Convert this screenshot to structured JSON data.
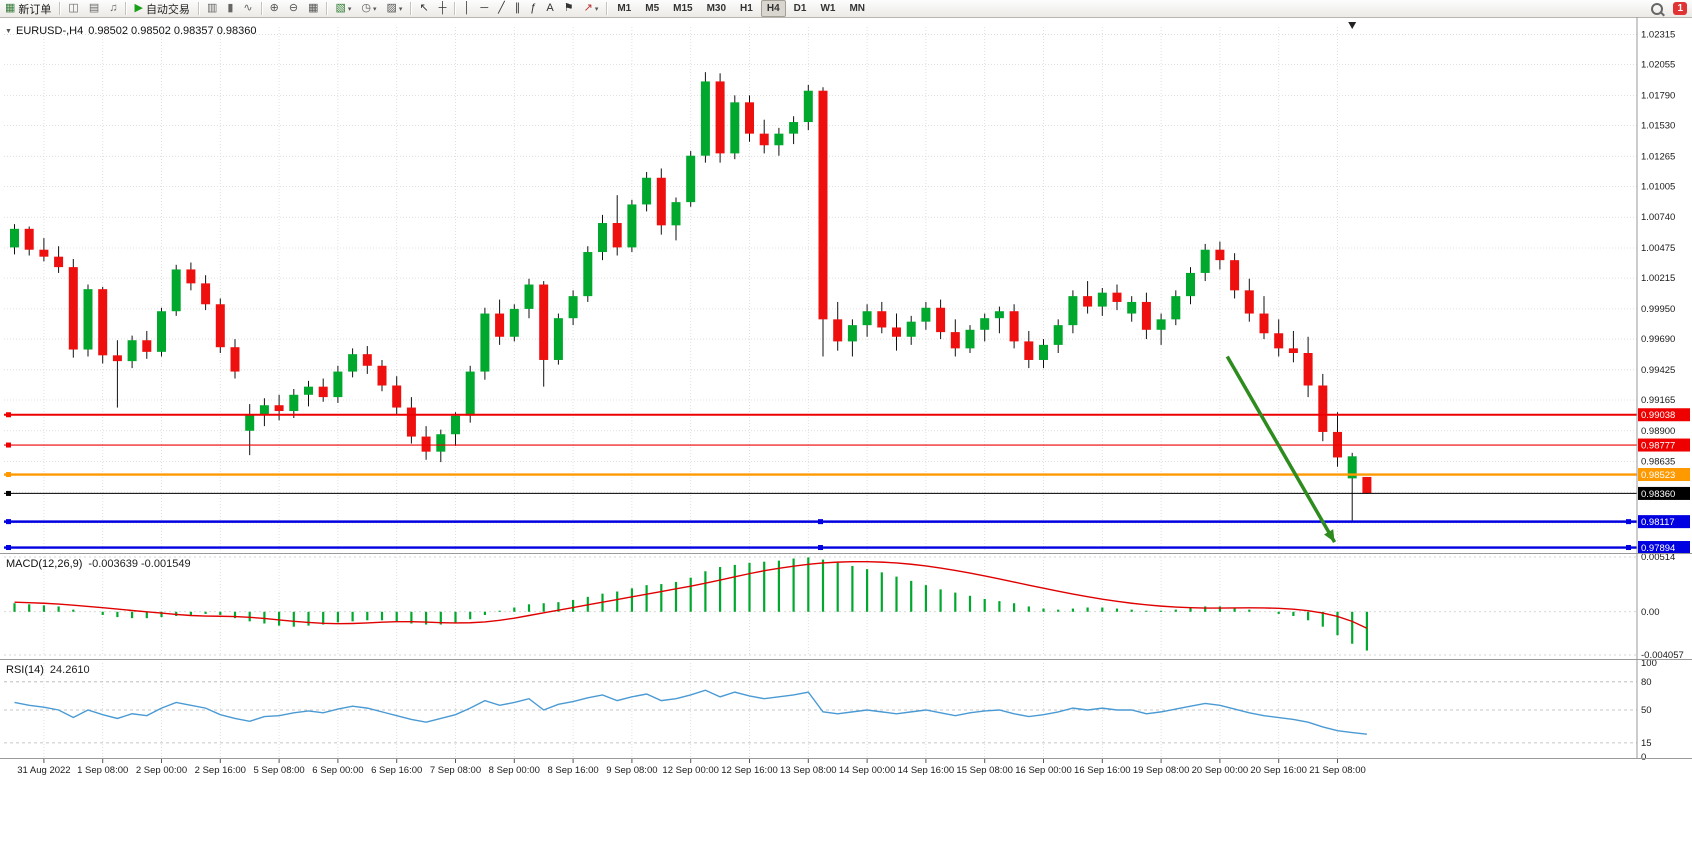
{
  "toolbar": {
    "groups": [
      [
        {
          "name": "new-order-button",
          "icon": "new-order",
          "label": "新订单"
        }
      ],
      [
        {
          "name": "charts-window-icon",
          "icon": "window"
        },
        {
          "name": "profiles-icon",
          "icon": "folder"
        },
        {
          "name": "alerts-icon",
          "icon": "sound"
        }
      ],
      [
        {
          "name": "autotrading-button",
          "icon": "play",
          "label": "自动交易"
        }
      ],
      [
        {
          "name": "bar-chart-button",
          "icon": "bars"
        },
        {
          "name": "candlestick-chart-button",
          "icon": "candles"
        },
        {
          "name": "line-chart-button",
          "icon": "linechart"
        }
      ],
      [
        {
          "name": "zoom-in-button",
          "icon": "zoom-in"
        },
        {
          "name": "zoom-out-button",
          "icon": "zoom-out"
        },
        {
          "name": "tile-windows-button",
          "icon": "tile"
        }
      ],
      [
        {
          "name": "new-chart-button",
          "icon": "chart-plus",
          "dropdown": true
        },
        {
          "name": "period-button",
          "icon": "clock",
          "dropdown": true
        },
        {
          "name": "templates-button",
          "icon": "template",
          "dropdown": true
        }
      ],
      [
        {
          "name": "cursor-button",
          "icon": "cursor"
        },
        {
          "name": "crosshair-button",
          "icon": "crosshair"
        }
      ],
      [
        {
          "name": "vertical-line-button",
          "icon": "vline"
        },
        {
          "name": "horizontal-line-button",
          "icon": "hline"
        },
        {
          "name": "trendline-button",
          "icon": "trend"
        },
        {
          "name": "equidistant-channel-button",
          "icon": "channel"
        },
        {
          "name": "fibonacci-button",
          "icon": "fibo"
        },
        {
          "name": "text-button",
          "icon": "text"
        },
        {
          "name": "label-button",
          "icon": "label"
        },
        {
          "name": "arrows-button",
          "icon": "arrowtool",
          "dropdown": true
        }
      ]
    ],
    "timeframes": [
      "M1",
      "M5",
      "M15",
      "M30",
      "H1",
      "H4",
      "D1",
      "W1",
      "MN"
    ],
    "active_timeframe": "H4",
    "notification_count": "1"
  },
  "symbol_header": {
    "collapse_icon": "▼",
    "symbol": "EURUSD-,H4",
    "ohlc_text": "0.98502 0.98502 0.98357 0.98360"
  },
  "indicators": {
    "macd": {
      "label": "MACD(12,26,9)",
      "values": "-0.003639 -0.001549"
    },
    "rsi": {
      "label": "RSI(14)",
      "value": "24.2610"
    }
  },
  "colors": {
    "bull": "#00a82d",
    "bear": "#ee0f0f",
    "wick": "#111111",
    "grid": "#d8d8d8",
    "separator": "#9a9a9a",
    "axis_text": "#1a1a1a",
    "macd_hist": "#00a82d",
    "macd_signal": "#e00000",
    "rsi_line": "#4a9ad4",
    "arrow": "#2e8b1e"
  },
  "chart_data": [
    {
      "type": "candlestick",
      "title": "EURUSD-,H4",
      "ylim": [
        0.97864,
        1.02379
      ],
      "y_ticks": [
        "1.02315",
        "1.02055",
        "1.01790",
        "1.01530",
        "1.01265",
        "1.01005",
        "1.00740",
        "1.00475",
        "1.00215",
        "0.99950",
        "0.99690",
        "0.99425",
        "0.99165",
        "0.98900",
        "0.98635"
      ],
      "grid_extra": [
        0.9837,
        0.98105
      ],
      "x_labels": [
        "31 Aug 2022",
        "1 Sep 08:00",
        "2 Sep 00:00",
        "2 Sep 16:00",
        "5 Sep 08:00",
        "6 Sep 00:00",
        "6 Sep 16:00",
        "7 Sep 08:00",
        "8 Sep 00:00",
        "8 Sep 16:00",
        "9 Sep 08:00",
        "12 Sep 00:00",
        "12 Sep 16:00",
        "13 Sep 08:00",
        "14 Sep 00:00",
        "14 Sep 16:00",
        "15 Sep 08:00",
        "16 Sep 00:00",
        "16 Sep 16:00",
        "19 Sep 08:00",
        "20 Sep 00:00",
        "20 Sep 16:00",
        "21 Sep 08:00"
      ],
      "x_label_first_index": 2,
      "x_label_step": 4,
      "hlines": [
        {
          "price": 0.99038,
          "label": "0.99038",
          "color": "#ee0000",
          "width": 2,
          "selected": false
        },
        {
          "price": 0.98777,
          "label": "0.98777",
          "color": "#ee0000",
          "width": 1.2,
          "selected": false
        },
        {
          "price": 0.98523,
          "label": "0.98523",
          "color": "#ff9900",
          "width": 2.4,
          "selected": false
        },
        {
          "price": 0.9836,
          "label": "0.98360",
          "color": "#000000",
          "width": 1,
          "selected": false
        },
        {
          "price": 0.98117,
          "label": "0.98117",
          "color": "#0000e0",
          "width": 2.4,
          "selected": true
        },
        {
          "price": 0.97894,
          "label": "0.97894",
          "color": "#0000e0",
          "width": 2.4,
          "selected": true
        }
      ],
      "arrow": {
        "from_index": 82.5,
        "from_price": 0.9954,
        "to_index": 89.8,
        "to_price": 0.9794
      },
      "last_bar_marker_index": 91,
      "candles": [
        [
          1.0048,
          1.0068,
          1.0042,
          1.0064
        ],
        [
          1.0064,
          1.0066,
          1.0041,
          1.0046
        ],
        [
          1.0046,
          1.0056,
          1.0036,
          1.004
        ],
        [
          1.004,
          1.0049,
          1.0026,
          1.0031
        ],
        [
          1.0031,
          1.0038,
          0.9953,
          0.996
        ],
        [
          0.996,
          1.0016,
          0.9954,
          1.0012
        ],
        [
          1.0012,
          1.0014,
          0.9948,
          0.9955
        ],
        [
          0.9955,
          0.9968,
          0.991,
          0.995
        ],
        [
          0.995,
          0.9972,
          0.9944,
          0.9968
        ],
        [
          0.9968,
          0.9976,
          0.9952,
          0.9958
        ],
        [
          0.9958,
          0.9996,
          0.9954,
          0.9993
        ],
        [
          0.9993,
          1.0033,
          0.9989,
          1.0029
        ],
        [
          1.0029,
          1.0035,
          1.0011,
          1.0017
        ],
        [
          1.0017,
          1.0024,
          0.9994,
          0.9999
        ],
        [
          0.9999,
          1.0004,
          0.9957,
          0.9962
        ],
        [
          0.9962,
          0.9969,
          0.9935,
          0.9941
        ],
        [
          0.989,
          0.9913,
          0.9869,
          0.9904
        ],
        [
          0.9904,
          0.9918,
          0.9894,
          0.9912
        ],
        [
          0.9912,
          0.9921,
          0.9899,
          0.9907
        ],
        [
          0.9907,
          0.9926,
          0.9901,
          0.9921
        ],
        [
          0.9921,
          0.9933,
          0.9911,
          0.9928
        ],
        [
          0.9928,
          0.9935,
          0.9915,
          0.9919
        ],
        [
          0.9919,
          0.9946,
          0.9914,
          0.9941
        ],
        [
          0.9941,
          0.9961,
          0.9936,
          0.9956
        ],
        [
          0.9956,
          0.9963,
          0.9939,
          0.9946
        ],
        [
          0.9946,
          0.9951,
          0.9924,
          0.9929
        ],
        [
          0.9929,
          0.9937,
          0.9904,
          0.991
        ],
        [
          0.991,
          0.9919,
          0.9879,
          0.9885
        ],
        [
          0.9885,
          0.9894,
          0.9865,
          0.9872
        ],
        [
          0.9872,
          0.9891,
          0.9863,
          0.9887
        ],
        [
          0.9887,
          0.9906,
          0.9877,
          0.9903
        ],
        [
          0.9903,
          0.9946,
          0.9897,
          0.9941
        ],
        [
          0.9941,
          0.9996,
          0.9934,
          0.9991
        ],
        [
          0.9991,
          1.0003,
          0.9964,
          0.9971
        ],
        [
          0.9971,
          0.9999,
          0.9967,
          0.9995
        ],
        [
          0.9995,
          1.0021,
          0.9987,
          1.0016
        ],
        [
          1.0016,
          1.0019,
          0.9928,
          0.9951
        ],
        [
          0.9951,
          0.9991,
          0.9947,
          0.9987
        ],
        [
          0.9987,
          1.0011,
          0.9981,
          1.0006
        ],
        [
          1.0006,
          1.0049,
          1.0001,
          1.0044
        ],
        [
          1.0044,
          1.0076,
          1.0037,
          1.0069
        ],
        [
          1.0069,
          1.0093,
          1.0041,
          1.0048
        ],
        [
          1.0048,
          1.0089,
          1.0044,
          1.0085
        ],
        [
          1.0085,
          1.0113,
          1.0079,
          1.0108
        ],
        [
          1.0108,
          1.0116,
          1.0059,
          1.0067
        ],
        [
          1.0067,
          1.0091,
          1.0054,
          1.0087
        ],
        [
          1.0087,
          1.0131,
          1.0083,
          1.0127
        ],
        [
          1.0127,
          1.0199,
          1.0121,
          1.0191
        ],
        [
          1.0191,
          1.0198,
          1.0121,
          1.0129
        ],
        [
          1.0129,
          1.0179,
          1.0124,
          1.0173
        ],
        [
          1.0173,
          1.0179,
          1.0139,
          1.0146
        ],
        [
          1.0146,
          1.0158,
          1.0129,
          1.0136
        ],
        [
          1.0136,
          1.0151,
          1.0127,
          1.0146
        ],
        [
          1.0146,
          1.0161,
          1.0137,
          1.0156
        ],
        [
          1.0156,
          1.0188,
          1.0149,
          1.0183
        ],
        [
          1.0183,
          1.0186,
          0.9954,
          0.9986
        ],
        [
          0.9986,
          1.0001,
          0.9959,
          0.9967
        ],
        [
          0.9967,
          0.9986,
          0.9954,
          0.9981
        ],
        [
          0.9981,
          0.9999,
          0.9971,
          0.9993
        ],
        [
          0.9993,
          1.0001,
          0.9974,
          0.9979
        ],
        [
          0.9979,
          0.9991,
          0.9959,
          0.9971
        ],
        [
          0.9971,
          0.9989,
          0.9964,
          0.9984
        ],
        [
          0.9984,
          1.0001,
          0.9977,
          0.9996
        ],
        [
          0.9996,
          1.0003,
          0.9969,
          0.9975
        ],
        [
          0.9975,
          0.9986,
          0.9954,
          0.9961
        ],
        [
          0.9961,
          0.9981,
          0.9957,
          0.9977
        ],
        [
          0.9977,
          0.9991,
          0.9967,
          0.9987
        ],
        [
          0.9987,
          0.9997,
          0.9974,
          0.9993
        ],
        [
          0.9993,
          0.9999,
          0.9961,
          0.9967
        ],
        [
          0.9967,
          0.9976,
          0.9944,
          0.9951
        ],
        [
          0.9951,
          0.9969,
          0.9944,
          0.9964
        ],
        [
          0.9964,
          0.9986,
          0.9957,
          0.9981
        ],
        [
          0.9981,
          1.0011,
          0.9974,
          1.0006
        ],
        [
          1.0006,
          1.0019,
          0.9991,
          0.9997
        ],
        [
          0.9997,
          1.0013,
          0.9989,
          1.0009
        ],
        [
          1.0009,
          1.0016,
          0.9994,
          1.0001
        ],
        [
          0.9991,
          1.0006,
          0.9984,
          1.0001
        ],
        [
          1.0001,
          1.0009,
          0.9969,
          0.9977
        ],
        [
          0.9977,
          0.9991,
          0.9964,
          0.9986
        ],
        [
          0.9986,
          1.0011,
          0.9981,
          1.0006
        ],
        [
          1.0006,
          1.0031,
          0.9999,
          1.0026
        ],
        [
          1.0026,
          1.0051,
          1.0019,
          1.0046
        ],
        [
          1.0046,
          1.0053,
          1.0029,
          1.0037
        ],
        [
          1.0037,
          1.0043,
          1.0004,
          1.0011
        ],
        [
          1.0011,
          1.0021,
          0.9984,
          0.9991
        ],
        [
          0.9991,
          1.0006,
          0.9969,
          0.9974
        ],
        [
          0.9974,
          0.9986,
          0.9954,
          0.9961
        ],
        [
          0.9961,
          0.9976,
          0.9949,
          0.9957
        ],
        [
          0.9957,
          0.9971,
          0.9919,
          0.9929
        ],
        [
          0.9929,
          0.9939,
          0.9881,
          0.9889
        ],
        [
          0.9889,
          0.9906,
          0.9859,
          0.9867
        ],
        [
          0.9849,
          0.9871,
          0.9812,
          0.9868
        ],
        [
          0.98502,
          0.98502,
          0.98357,
          0.9836
        ]
      ]
    },
    {
      "type": "bar",
      "name": "MACD",
      "params": "(12,26,9)",
      "values_label": "-0.003639 -0.001549",
      "ylim": [
        -0.004057,
        0.00514
      ],
      "y_ticks": [
        "0.00514",
        "0.00",
        "-0.004057"
      ],
      "histogram": [
        0.0008,
        0.0007,
        0.0006,
        0.0005,
        0.0002,
        0.0,
        -0.0003,
        -0.0005,
        -0.0006,
        -0.0006,
        -0.0005,
        -0.0004,
        -0.0003,
        -0.0002,
        -0.0003,
        -0.0006,
        -0.0009,
        -0.0011,
        -0.0013,
        -0.0014,
        -0.0013,
        -0.0012,
        -0.001,
        -0.0009,
        -0.0008,
        -0.0008,
        -0.0009,
        -0.0011,
        -0.0012,
        -0.0012,
        -0.001,
        -0.0007,
        -0.0003,
        0.0001,
        0.0004,
        0.0007,
        0.0008,
        0.0009,
        0.0011,
        0.0014,
        0.0017,
        0.0019,
        0.0022,
        0.0025,
        0.0026,
        0.0028,
        0.0032,
        0.0038,
        0.0042,
        0.0044,
        0.0046,
        0.0047,
        0.0048,
        0.005,
        0.0051,
        0.0049,
        0.0046,
        0.0043,
        0.004,
        0.0037,
        0.0033,
        0.0029,
        0.0025,
        0.0021,
        0.0018,
        0.0015,
        0.0012,
        0.001,
        0.0008,
        0.0005,
        0.0003,
        0.0002,
        0.0003,
        0.0004,
        0.0004,
        0.0003,
        0.0002,
        0.0001,
        0.0001,
        0.0002,
        0.0004,
        0.0005,
        0.0005,
        0.0004,
        0.0002,
        0.0,
        -0.0002,
        -0.0004,
        -0.0008,
        -0.0014,
        -0.0022,
        -0.003,
        -0.003639
      ],
      "signal": [
        0.0009,
        0.00085,
        0.0008,
        0.00072,
        0.00062,
        0.0005,
        0.00038,
        0.00025,
        0.00012,
        0.0,
        -0.00012,
        -0.00025,
        -0.00035,
        -0.0004,
        -0.00042,
        -0.00045,
        -0.00052,
        -0.00063,
        -0.00077,
        -0.0009,
        -0.001,
        -0.00108,
        -0.00112,
        -0.0011,
        -0.00105,
        -0.00098,
        -0.00093,
        -0.00093,
        -0.00097,
        -0.00102,
        -0.00105,
        -0.00103,
        -0.00095,
        -0.0008,
        -0.0006,
        -0.00035,
        -0.0001,
        0.00015,
        0.0004,
        0.00065,
        0.0009,
        0.00115,
        0.0014,
        0.00165,
        0.0019,
        0.00215,
        0.0024,
        0.00268,
        0.00298,
        0.00328,
        0.00358,
        0.00385,
        0.00408,
        0.00428,
        0.00445,
        0.00458,
        0.00466,
        0.0047,
        0.0047,
        0.00466,
        0.00458,
        0.00446,
        0.0043,
        0.0041,
        0.00388,
        0.00363,
        0.00336,
        0.00308,
        0.00279,
        0.0025,
        0.00221,
        0.00193,
        0.00166,
        0.00141,
        0.00118,
        0.00098,
        0.0008,
        0.00065,
        0.00053,
        0.00044,
        0.00038,
        0.00035,
        0.00035,
        0.00036,
        0.00037,
        0.00036,
        0.00032,
        0.00024,
        0.0001,
        -0.00012,
        -0.00044,
        -0.0009,
        -0.001549
      ]
    },
    {
      "type": "line",
      "name": "RSI",
      "params": "(14)",
      "value_label": "24.2610",
      "ylim": [
        0,
        100
      ],
      "y_ticks": [
        "100",
        "80",
        "50",
        "15",
        "0"
      ],
      "levels": [
        80,
        50,
        15
      ],
      "values": [
        58,
        55,
        53,
        50,
        42,
        50,
        45,
        41,
        46,
        44,
        52,
        58,
        55,
        52,
        45,
        41,
        38,
        43,
        44,
        47,
        49,
        47,
        51,
        54,
        52,
        48,
        44,
        40,
        37,
        41,
        45,
        52,
        60,
        55,
        58,
        62,
        50,
        56,
        59,
        63,
        66,
        60,
        64,
        67,
        60,
        62,
        66,
        71,
        64,
        69,
        65,
        62,
        64,
        66,
        69,
        48,
        46,
        48,
        50,
        48,
        46,
        48,
        50,
        47,
        44,
        47,
        49,
        50,
        46,
        43,
        45,
        48,
        52,
        50,
        52,
        50,
        50,
        46,
        48,
        51,
        54,
        57,
        55,
        51,
        47,
        44,
        42,
        40,
        37,
        32,
        28,
        26,
        24.26
      ]
    }
  ]
}
